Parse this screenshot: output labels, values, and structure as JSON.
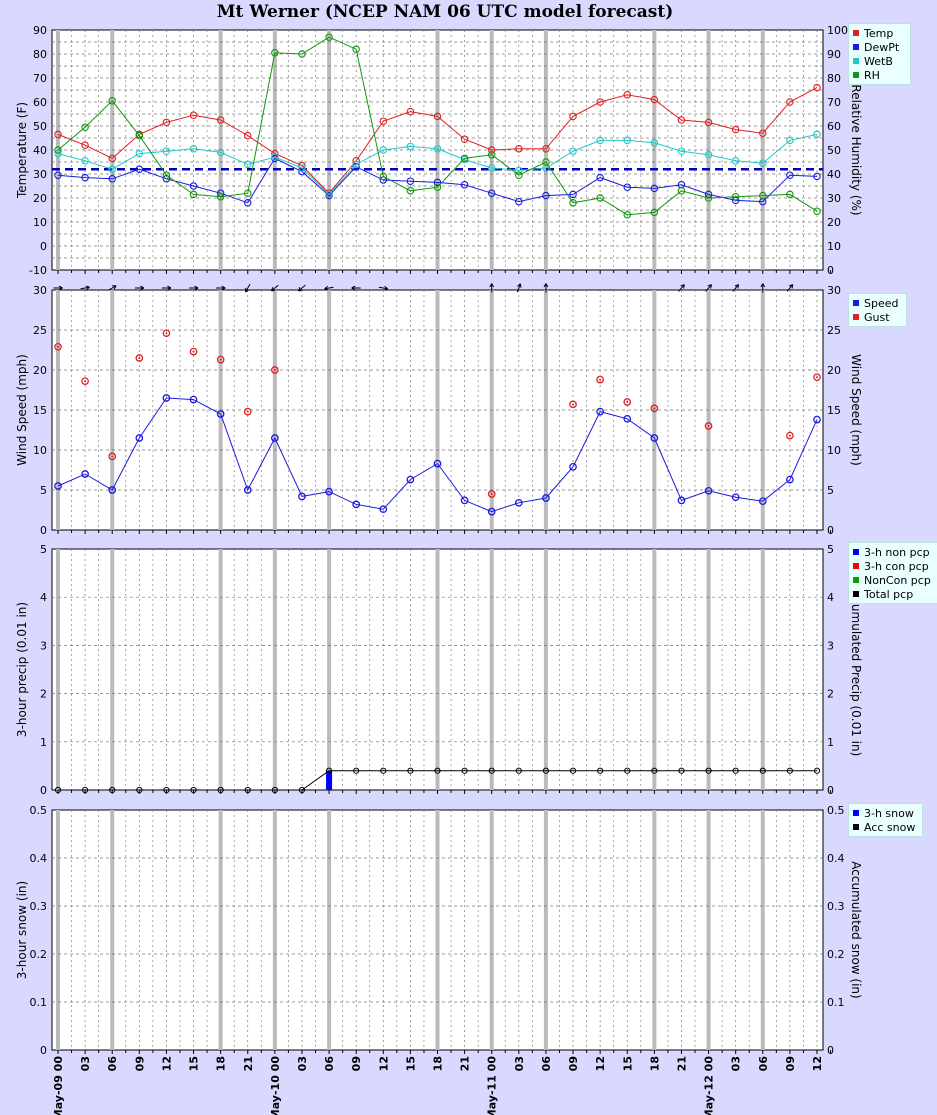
{
  "title": "Mt Werner (NCEP NAM 06 UTC model forecast)",
  "colors": {
    "background": "#d9d9ff",
    "plot_bg": "#ffffff",
    "temp": "#e02020",
    "dewpt": "#1a1ae0",
    "wetb": "#20c8c8",
    "rh": "#129612",
    "speed": "#1a1ae0",
    "gust": "#e02020",
    "nonpcp": "#0000ff",
    "conpcp": "#ff0000",
    "noncon": "#00a000",
    "totalpcp": "#000000",
    "snow3h": "#0000ff",
    "accsnow": "#000000",
    "freezing_line": "#0000c0"
  },
  "x_ticks": [
    "May-09 00",
    "03",
    "06",
    "09",
    "12",
    "15",
    "18",
    "21",
    "May-10 00",
    "03",
    "06",
    "09",
    "12",
    "15",
    "18",
    "21",
    "May-11 00",
    "03",
    "06",
    "09",
    "12",
    "15",
    "18",
    "21",
    "May-12 00",
    "03",
    "06",
    "09",
    "12"
  ],
  "chart_data": [
    {
      "type": "line",
      "ylabel": "Temperature (F)",
      "y2label": "Relative Humidity (%)",
      "ylim": [
        -10,
        90
      ],
      "y2lim": [
        0,
        100
      ],
      "y_ticks": [
        -10,
        0,
        10,
        20,
        30,
        40,
        50,
        60,
        70,
        80,
        90
      ],
      "y2_ticks": [
        0,
        10,
        20,
        30,
        40,
        50,
        60,
        70,
        80,
        90,
        100
      ],
      "freezing_line": 32,
      "series": [
        {
          "name": "Temp",
          "axis": "left",
          "values": [
            46.5,
            42,
            36.5,
            46.5,
            51.5,
            54.5,
            52.5,
            46,
            38.5,
            33.5,
            22,
            35.5,
            52,
            56,
            54,
            44.5,
            40,
            40.5,
            40.5,
            54,
            60,
            63,
            61,
            52.5,
            51.5,
            48.5,
            47,
            60,
            66
          ]
        },
        {
          "name": "DewPt",
          "axis": "left",
          "values": [
            29.5,
            28.5,
            28,
            32,
            28,
            25,
            22,
            18,
            36.5,
            31,
            21,
            33,
            27.5,
            27,
            26.5,
            25.5,
            22,
            18.5,
            21,
            21.5,
            28.5,
            24.5,
            24,
            25.5,
            21.5,
            19,
            18.5,
            29.5,
            29
          ]
        },
        {
          "name": "WetB",
          "axis": "left",
          "values": [
            38.5,
            35.5,
            32,
            38.5,
            39.5,
            40.5,
            39,
            34,
            37,
            32.5,
            21.5,
            34,
            40,
            41.5,
            40.5,
            36,
            32.5,
            31.5,
            32.5,
            39.5,
            44,
            44,
            43,
            39.5,
            38,
            35.5,
            34.5,
            44,
            46.5
          ]
        },
        {
          "name": "RH",
          "axis": "right",
          "values": [
            50,
            59.5,
            70.5,
            56,
            39.5,
            31.5,
            30.5,
            32,
            90.5,
            90,
            97,
            92,
            39,
            33,
            34.5,
            46.5,
            48,
            39.5,
            45,
            28,
            30,
            23,
            24,
            33,
            30,
            30.5,
            31,
            31.5,
            24.5
          ]
        }
      ]
    },
    {
      "type": "line",
      "ylabel": "Wind Speed (mph)",
      "y2label": "Wind Speed (mph)",
      "ylim": [
        0,
        30
      ],
      "y2lim": [
        0,
        30
      ],
      "y_ticks": [
        0,
        5,
        10,
        15,
        20,
        25,
        30
      ],
      "y2_ticks": [
        0,
        5,
        10,
        15,
        20,
        25,
        30
      ],
      "series": [
        {
          "name": "Speed",
          "values": [
            5.5,
            7,
            5,
            11.5,
            16.5,
            16.3,
            14.5,
            5,
            11.5,
            4.2,
            4.8,
            3.2,
            2.6,
            6.3,
            8.3,
            3.7,
            2.3,
            3.4,
            4,
            7.9,
            14.8,
            13.9,
            11.5,
            3.7,
            4.9,
            4.1,
            3.6,
            6.3,
            13.8
          ]
        },
        {
          "name": "Gust",
          "values": [
            22.9,
            18.6,
            9.2,
            21.5,
            24.6,
            22.3,
            21.3,
            14.8,
            20,
            null,
            null,
            null,
            null,
            null,
            null,
            null,
            4.5,
            null,
            null,
            15.7,
            18.8,
            16,
            15.2,
            null,
            13,
            null,
            null,
            11.8,
            19.1
          ]
        }
      ],
      "wind_direction_from_deg": [
        270,
        260,
        240,
        270,
        270,
        270,
        270,
        30,
        50,
        50,
        80,
        90,
        280,
        null,
        null,
        null,
        180,
        200,
        180,
        null,
        null,
        null,
        null,
        220,
        220,
        220,
        180,
        220,
        null
      ]
    },
    {
      "type": "bar",
      "ylabel": "3-hour precip (0.01 in)",
      "y2label": "Accumulated Precip (0.01 in)",
      "ylim": [
        0,
        5
      ],
      "y2lim": [
        0,
        5
      ],
      "y_ticks": [
        0,
        1,
        2,
        3,
        4,
        5
      ],
      "y2_ticks": [
        0,
        1,
        2,
        3,
        4,
        5
      ],
      "series": [
        {
          "name": "3-h non pcp",
          "values": [
            0,
            0,
            0,
            0,
            0,
            0,
            0,
            0,
            0,
            0,
            0.4,
            0,
            0,
            0,
            0,
            0,
            0,
            0,
            0,
            0,
            0,
            0,
            0,
            0,
            0,
            0,
            0,
            0,
            0
          ]
        },
        {
          "name": "3-h con pcp",
          "values": [
            0,
            0,
            0,
            0,
            0,
            0,
            0,
            0,
            0,
            0,
            0,
            0,
            0,
            0,
            0,
            0,
            0,
            0,
            0,
            0,
            0,
            0,
            0,
            0,
            0,
            0,
            0,
            0,
            0
          ]
        },
        {
          "name": "NonCon pcp",
          "values": [
            0,
            0,
            0,
            0,
            0,
            0,
            0,
            0,
            0,
            0,
            0.4,
            0.4,
            0.4,
            0.4,
            0.4,
            0.4,
            0.4,
            0.4,
            0.4,
            0.4,
            0.4,
            0.4,
            0.4,
            0.4,
            0.4,
            0.4,
            0.4,
            0.4,
            0.4
          ]
        },
        {
          "name": "Total pcp",
          "values": [
            0,
            0,
            0,
            0,
            0,
            0,
            0,
            0,
            0,
            0,
            0.4,
            0.4,
            0.4,
            0.4,
            0.4,
            0.4,
            0.4,
            0.4,
            0.4,
            0.4,
            0.4,
            0.4,
            0.4,
            0.4,
            0.4,
            0.4,
            0.4,
            0.4,
            0.4
          ]
        }
      ]
    },
    {
      "type": "bar",
      "ylabel": "3-hour snow (in)",
      "y2label": "Accumulated snow (in)",
      "ylim": [
        0,
        0.5
      ],
      "y2lim": [
        0,
        0.5
      ],
      "y_ticks": [
        0,
        0.1,
        0.2,
        0.3,
        0.4,
        0.5
      ],
      "y2_ticks": [
        0,
        0.1,
        0.2,
        0.3,
        0.4,
        0.5
      ],
      "series": [
        {
          "name": "3-h snow",
          "values": [
            0,
            0,
            0,
            0,
            0,
            0,
            0,
            0,
            0,
            0,
            0,
            0,
            0,
            0,
            0,
            0,
            0,
            0,
            0,
            0,
            0,
            0,
            0,
            0,
            0,
            0,
            0,
            0,
            0
          ]
        },
        {
          "name": "Acc snow",
          "values": [
            0,
            0,
            0,
            0,
            0,
            0,
            0,
            0,
            0,
            0,
            0,
            0,
            0,
            0,
            0,
            0,
            0,
            0,
            0,
            0,
            0,
            0,
            0,
            0,
            0,
            0,
            0,
            0,
            0
          ]
        }
      ]
    }
  ],
  "legends": [
    {
      "items": [
        {
          "label": "Temp",
          "color": "#e02020"
        },
        {
          "label": "DewPt",
          "color": "#1a1ae0"
        },
        {
          "label": "WetB",
          "color": "#20c8c8"
        },
        {
          "label": "RH",
          "color": "#129612"
        }
      ]
    },
    {
      "items": [
        {
          "label": "Speed",
          "color": "#1a1ae0"
        },
        {
          "label": "Gust",
          "color": "#e02020"
        }
      ]
    },
    {
      "items": [
        {
          "label": "3-h non pcp",
          "color": "#0000ff"
        },
        {
          "label": "3-h con pcp",
          "color": "#ff0000"
        },
        {
          "label": "NonCon pcp",
          "color": "#00a000"
        },
        {
          "label": "Total pcp",
          "color": "#000000"
        }
      ]
    },
    {
      "items": [
        {
          "label": "3-h snow",
          "color": "#0000ff"
        },
        {
          "label": "Acc snow",
          "color": "#000000"
        }
      ]
    }
  ]
}
